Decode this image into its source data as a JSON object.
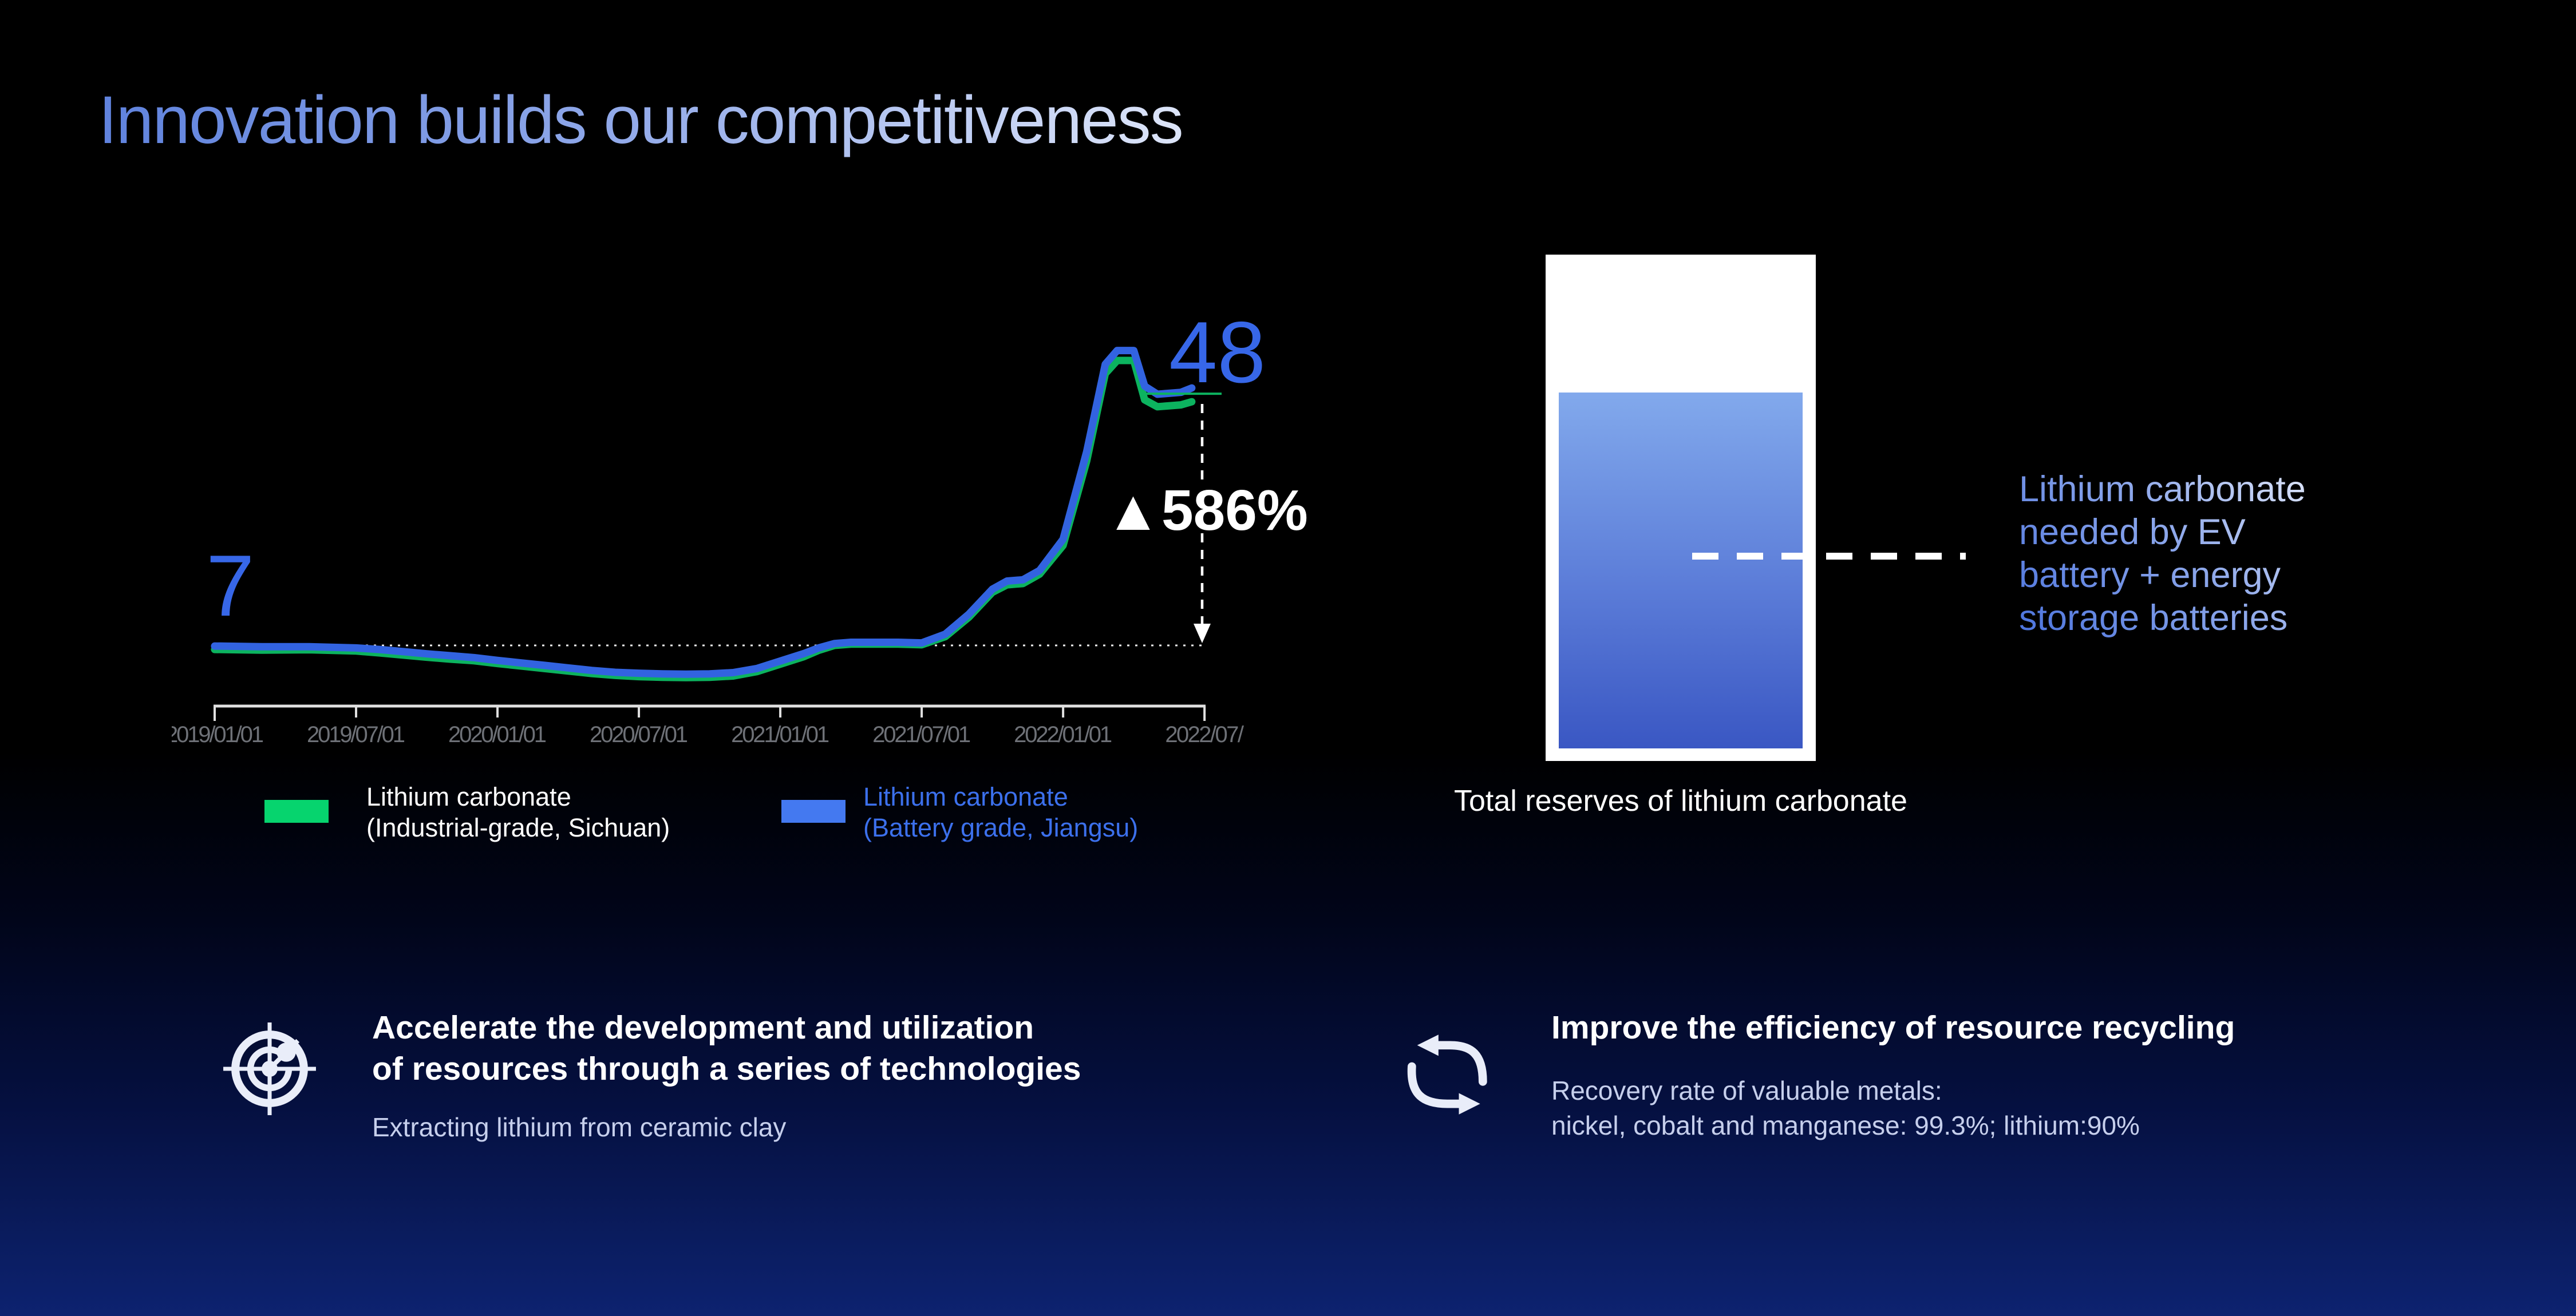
{
  "slide": {
    "title": "Innovation builds our competitiveness"
  },
  "colors": {
    "accent_blue": "#3767e8",
    "line_blue": "#3263e0",
    "swatch_blue": "#4479f0",
    "legend_blue_text": "#3c70ec",
    "line_green": "#0cb35f",
    "swatch_green": "#06d46e",
    "axis_label_gray": "#6e7177",
    "bottom_navy": "#0b1e66",
    "white": "#ffffff"
  },
  "chart_data": {
    "type": "line",
    "title": "",
    "xlabel": "",
    "ylabel": "",
    "grid": false,
    "legend_position": "bottom",
    "x_tick_labels": [
      "2019/01/01",
      "2019/07/01",
      "2020/01/01",
      "2020/07/01",
      "2021/01/01",
      "2021/07/01",
      "2022/01/01",
      "2022/07/"
    ],
    "ylim": [
      0,
      56
    ],
    "baseline": {
      "value": 7,
      "style": "dotted"
    },
    "annotations": {
      "start_value": "7",
      "end_value": "48",
      "change": "▲586%"
    },
    "series": [
      {
        "name": "Lithium carbonate (Industrial-grade, Sichuan)",
        "color": "#0cb35f",
        "points": [
          [
            "2019-01-01",
            6.35
          ],
          [
            "2019-03-01",
            6.25
          ],
          [
            "2019-05-01",
            6.3
          ],
          [
            "2019-07-01",
            6.1
          ],
          [
            "2019-08-01",
            5.8
          ],
          [
            "2019-09-01",
            5.45
          ],
          [
            "2019-10-01",
            5.1
          ],
          [
            "2019-11-01",
            4.8
          ],
          [
            "2019-12-01",
            4.55
          ],
          [
            "2020-01-01",
            4.1
          ],
          [
            "2020-02-01",
            3.7
          ],
          [
            "2020-03-01",
            3.3
          ],
          [
            "2020-04-01",
            2.9
          ],
          [
            "2020-05-01",
            2.5
          ],
          [
            "2020-06-01",
            2.2
          ],
          [
            "2020-07-01",
            2.0
          ],
          [
            "2020-08-01",
            1.9
          ],
          [
            "2020-09-01",
            1.85
          ],
          [
            "2020-10-01",
            1.9
          ],
          [
            "2020-11-01",
            2.1
          ],
          [
            "2020-12-01",
            2.8
          ],
          [
            "2021-01-01",
            4.0
          ],
          [
            "2021-02-01",
            5.2
          ],
          [
            "2021-02-20",
            6.2
          ],
          [
            "2021-03-10",
            7.0
          ],
          [
            "2021-04-01",
            7.2
          ],
          [
            "2021-06-01",
            7.2
          ],
          [
            "2021-07-01",
            7.1
          ],
          [
            "2021-08-01",
            8.4
          ],
          [
            "2021-09-01",
            11.5
          ],
          [
            "2021-10-01",
            15.5
          ],
          [
            "2021-10-20",
            16.7
          ],
          [
            "2021-11-10",
            16.9
          ],
          [
            "2021-12-01",
            18.4
          ],
          [
            "2022-01-01",
            23.0
          ],
          [
            "2022-02-01",
            36.5
          ],
          [
            "2022-02-25",
            50.5
          ],
          [
            "2022-03-10",
            52.6
          ],
          [
            "2022-04-01",
            52.6
          ],
          [
            "2022-04-15",
            46.3
          ],
          [
            "2022-05-01",
            45.2
          ],
          [
            "2022-06-01",
            45.5
          ],
          [
            "2022-06-15",
            46.0
          ]
        ]
      },
      {
        "name": "Lithium carbonate (Battery grade, Jiangsu)",
        "color": "#3263e0",
        "points": [
          [
            "2019-01-01",
            6.9
          ],
          [
            "2019-03-01",
            6.8
          ],
          [
            "2019-05-01",
            6.8
          ],
          [
            "2019-07-01",
            6.6
          ],
          [
            "2019-08-01",
            6.35
          ],
          [
            "2019-09-01",
            6.0
          ],
          [
            "2019-10-01",
            5.65
          ],
          [
            "2019-11-01",
            5.35
          ],
          [
            "2019-12-01",
            5.05
          ],
          [
            "2020-01-01",
            4.6
          ],
          [
            "2020-02-01",
            4.2
          ],
          [
            "2020-03-01",
            3.8
          ],
          [
            "2020-04-01",
            3.4
          ],
          [
            "2020-05-01",
            3.0
          ],
          [
            "2020-06-01",
            2.7
          ],
          [
            "2020-07-01",
            2.55
          ],
          [
            "2020-08-01",
            2.45
          ],
          [
            "2020-09-01",
            2.4
          ],
          [
            "2020-10-01",
            2.45
          ],
          [
            "2020-11-01",
            2.65
          ],
          [
            "2020-12-01",
            3.3
          ],
          [
            "2021-01-01",
            4.5
          ],
          [
            "2021-02-01",
            5.7
          ],
          [
            "2021-02-20",
            6.6
          ],
          [
            "2021-03-10",
            7.3
          ],
          [
            "2021-04-01",
            7.5
          ],
          [
            "2021-06-01",
            7.5
          ],
          [
            "2021-07-01",
            7.4
          ],
          [
            "2021-08-01",
            8.8
          ],
          [
            "2021-09-01",
            12.0
          ],
          [
            "2021-10-01",
            16.0
          ],
          [
            "2021-10-20",
            17.3
          ],
          [
            "2021-11-10",
            17.5
          ],
          [
            "2021-12-01",
            19.0
          ],
          [
            "2022-01-01",
            24.0
          ],
          [
            "2022-02-01",
            38.0
          ],
          [
            "2022-02-25",
            52.0
          ],
          [
            "2022-03-10",
            54.2
          ],
          [
            "2022-04-01",
            54.2
          ],
          [
            "2022-04-15",
            48.5
          ],
          [
            "2022-05-01",
            47.2
          ],
          [
            "2022-06-01",
            47.5
          ],
          [
            "2022-06-15",
            48.2
          ]
        ]
      }
    ]
  },
  "legend": {
    "items": [
      {
        "swatch_color": "#06d46e",
        "label": "Lithium carbonate\n(Industrial-grade, Sichuan)",
        "label_color": "#ffffff"
      },
      {
        "swatch_color": "#4479f0",
        "label": "Lithium carbonate\n(Battery grade, Jiangsu)",
        "label_color": "#3c70ec"
      }
    ]
  },
  "reserves": {
    "callout": "Lithium carbonate\nneeded by EV\nbattery + energy\nstorage batteries",
    "caption": "Total reserves of lithium carbonate"
  },
  "cards": [
    {
      "icon": "radar-target",
      "heading": "Accelerate the development and utilization\nof resources through a series of technologies",
      "sub": "Extracting lithium from ceramic clay"
    },
    {
      "icon": "recycle-loop",
      "heading": "Improve the efficiency of resource recycling",
      "sub": "Recovery rate of valuable metals:\nnickel, cobalt and  manganese: 99.3%; lithium:90%"
    }
  ]
}
